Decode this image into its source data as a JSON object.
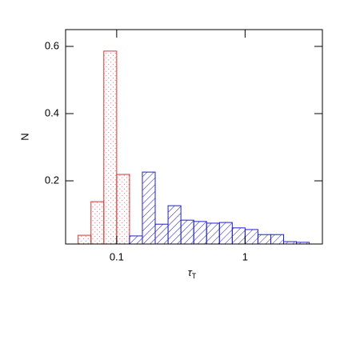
{
  "chart_data": {
    "type": "histogram",
    "ylabel": "N",
    "xlabel": "τ",
    "xlabel_sub": "T",
    "xscale": "log",
    "xlim": [
      0.04,
      4
    ],
    "ylim": [
      0.012,
      0.65
    ],
    "xticks": [
      0.1,
      1
    ],
    "yticks": [
      0.2,
      0.4,
      0.6
    ],
    "series": [
      {
        "color": "#e03030",
        "hatch": "dots",
        "bins": [
          0.0501,
          0.0631,
          0.0794,
          0.1,
          0.1259
        ],
        "values": [
          0.038,
          0.138,
          0.586,
          0.219
        ]
      },
      {
        "color": "#2020d0",
        "hatch": "diagonal",
        "bins": [
          0.1259,
          0.1585,
          0.1995,
          0.2512,
          0.3162,
          0.3981,
          0.5012,
          0.631,
          0.7943,
          1,
          1.2589,
          1.5849,
          1.9953,
          2.5119,
          3.1623
        ],
        "values": [
          0.036,
          0.226,
          0.071,
          0.126,
          0.083,
          0.079,
          0.074,
          0.076,
          0.06,
          0.055,
          0.04,
          0.04,
          0.019,
          0.017
        ]
      }
    ]
  }
}
